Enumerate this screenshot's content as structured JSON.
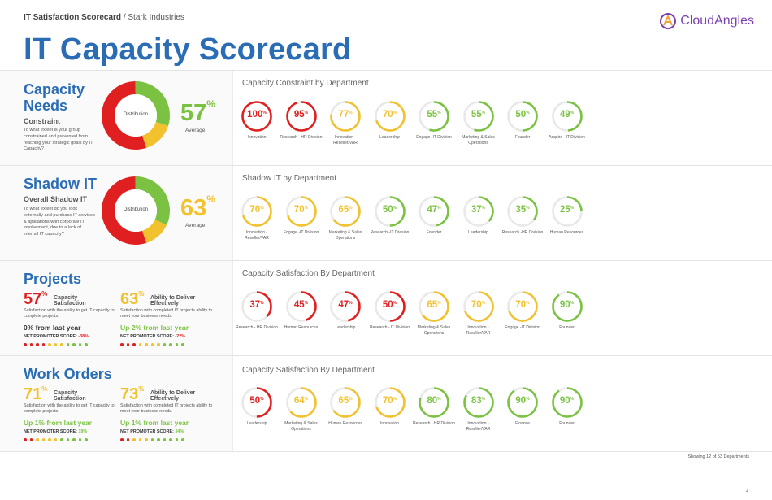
{
  "breadcrumb": {
    "strong": "IT Satisfaction Scorecard",
    "rest": "/ Stark Industries"
  },
  "brand": {
    "name": "CloudAngles",
    "color": "#7b3fb2"
  },
  "page_title": "IT Capacity Scorecard",
  "colors": {
    "red": "#e02020",
    "yellow": "#f2c12e",
    "green": "#7cc242",
    "track": "#e8e8e8",
    "title": "#2a6db5"
  },
  "capacity": {
    "title": "Capacity Needs",
    "subtitle": "Constraint",
    "description": "To what extent is your group constrained and prevented from reaching your strategic goals by IT Capacity?",
    "donut_label": "Distribution",
    "donut": [
      {
        "color": "red",
        "value": 55
      },
      {
        "color": "yellow",
        "value": 15
      },
      {
        "color": "green",
        "value": 30
      }
    ],
    "big_value": "57",
    "big_color": "green",
    "avg_label": "Average",
    "dept_title": "Capacity Constraint by Department",
    "depts": [
      {
        "value": "100",
        "label": "Innovation",
        "color": "red"
      },
      {
        "value": "95",
        "label": "Research - HR Division",
        "color": "red"
      },
      {
        "value": "77",
        "label": "Innovation - Reseller/VAR",
        "color": "yellow"
      },
      {
        "value": "70",
        "label": "Leadership",
        "color": "yellow"
      },
      {
        "value": "55",
        "label": "Engage -IT Division",
        "color": "green"
      },
      {
        "value": "55",
        "label": "Marketing & Sales Operations",
        "color": "green"
      },
      {
        "value": "50",
        "label": "Founder",
        "color": "green"
      },
      {
        "value": "49",
        "label": "Acquire - IT Division",
        "color": "green"
      }
    ]
  },
  "shadow": {
    "title": "Shadow IT",
    "subtitle": "Overall Shadow IT",
    "description": "To what extent do you look externally and purchase IT services & aplications with corporate IT involvement, due to a lack of internal IT capacity?",
    "donut_label": "Distribution",
    "donut": [
      {
        "color": "red",
        "value": 55
      },
      {
        "color": "yellow",
        "value": 13
      },
      {
        "color": "green",
        "value": 32
      }
    ],
    "big_value": "63",
    "big_color": "yellow",
    "avg_label": "Average",
    "dept_title": "Shadow IT by Department",
    "depts": [
      {
        "value": "70",
        "label": "Innovation -Reseller/VAR",
        "color": "yellow"
      },
      {
        "value": "70",
        "label": "Engage -IT Division",
        "color": "yellow"
      },
      {
        "value": "65",
        "label": "Marketing & Sales Operations",
        "color": "yellow"
      },
      {
        "value": "50",
        "label": "Research -IT Division",
        "color": "green"
      },
      {
        "value": "47",
        "label": "Founder",
        "color": "green"
      },
      {
        "value": "37",
        "label": "Leadership",
        "color": "green"
      },
      {
        "value": "35",
        "label": "Research -HR Division",
        "color": "green"
      },
      {
        "value": "25",
        "label": "Human Resources",
        "color": "green"
      }
    ]
  },
  "projects": {
    "title": "Projects",
    "metrics": [
      {
        "value": "57",
        "color": "red",
        "label": "Capacity Satisfaction",
        "desc": "Satisfaction with the ability to get IT capacity to complete projects.",
        "change": "0% from last year",
        "change_color": "#333",
        "nps_label": "NET PROMOTER SCORE:",
        "nps": "-38%",
        "nps_color": "red",
        "dots": [
          "red",
          "red",
          "red",
          "red",
          "yellow",
          "yellow",
          "yellow",
          "green",
          "green",
          "green",
          "green"
        ]
      },
      {
        "value": "63",
        "color": "yellow",
        "label": "Ability to Deliver Effectively",
        "desc": "Satisfaction with completed IT projects ability to meet your business needs.",
        "change": "Up 2% from last year",
        "change_color": "green",
        "nps_label": "NET PROMOTER SCORE:",
        "nps": "-22%",
        "nps_color": "red",
        "dots": [
          "red",
          "red",
          "red",
          "yellow",
          "yellow",
          "yellow",
          "yellow",
          "green",
          "green",
          "green",
          "green"
        ]
      }
    ],
    "dept_title": "Capacity Satisfaction By Department",
    "depts": [
      {
        "value": "37",
        "label": "Research - HR Division",
        "color": "red"
      },
      {
        "value": "45",
        "label": "Human Resources",
        "color": "red"
      },
      {
        "value": "47",
        "label": "Leadership",
        "color": "red"
      },
      {
        "value": "50",
        "label": "Research - IT Division",
        "color": "red"
      },
      {
        "value": "65",
        "label": "Marketing & Sales Operations",
        "color": "yellow"
      },
      {
        "value": "70",
        "label": "Innovation - Reseller/VAR",
        "color": "yellow"
      },
      {
        "value": "70",
        "label": "Engage -IT Division",
        "color": "yellow"
      },
      {
        "value": "90",
        "label": "Founder",
        "color": "green"
      }
    ]
  },
  "work_orders": {
    "title": "Work Orders",
    "metrics": [
      {
        "value": "71",
        "color": "yellow",
        "label": "Capacity Satisfaction",
        "desc": "Satisfaction with the ability to get IT capacity to complete projects.",
        "change": "Up 1% from last year",
        "change_color": "green",
        "nps_label": "NET PROMOTER SCORE:",
        "nps": "19%",
        "nps_color": "green",
        "dots": [
          "red",
          "red",
          "yellow",
          "yellow",
          "yellow",
          "yellow",
          "green",
          "green",
          "green",
          "green",
          "green"
        ]
      },
      {
        "value": "73",
        "color": "yellow",
        "label": "Ability to Deliver Effectively",
        "desc": "Satisfaction with completed IT projects ability to meet your business needs.",
        "change": "Up 1% from last year",
        "change_color": "green",
        "nps_label": "NET PROMOTER SCORE:",
        "nps": "34%",
        "nps_color": "green",
        "dots": [
          "red",
          "red",
          "yellow",
          "yellow",
          "yellow",
          "green",
          "green",
          "green",
          "green",
          "green",
          "green"
        ]
      }
    ],
    "dept_title": "Capacity Satisfaction By Department",
    "depts": [
      {
        "value": "50",
        "label": "Leadership",
        "color": "red"
      },
      {
        "value": "64",
        "label": "Marketing & Sales Operations",
        "color": "yellow"
      },
      {
        "value": "65",
        "label": "Human Resources",
        "color": "yellow"
      },
      {
        "value": "70",
        "label": "Innovation",
        "color": "yellow"
      },
      {
        "value": "80",
        "label": "Research - HR Division",
        "color": "green"
      },
      {
        "value": "83",
        "label": "Innovation - Reseller/VAR",
        "color": "green"
      },
      {
        "value": "90",
        "label": "Finance",
        "color": "green"
      },
      {
        "value": "90",
        "label": "Founder",
        "color": "green"
      }
    ]
  },
  "footer": "Showing 12 of 53 Departments",
  "page_number": "4",
  "chart_data": [
    {
      "type": "pie",
      "title": "Capacity Constraint by Department",
      "categories": [
        "Innovation",
        "Research - HR Division",
        "Innovation - Reseller/VAR",
        "Leadership",
        "Engage -IT Division",
        "Marketing & Sales Operations",
        "Founder",
        "Acquire - IT Division"
      ],
      "values": [
        100,
        95,
        77,
        70,
        55,
        55,
        50,
        49
      ]
    },
    {
      "type": "pie",
      "title": "Shadow IT by Department",
      "categories": [
        "Innovation -Reseller/VAR",
        "Engage -IT Division",
        "Marketing & Sales Operations",
        "Research -IT Division",
        "Founder",
        "Leadership",
        "Research -HR Division",
        "Human Resources"
      ],
      "values": [
        70,
        70,
        65,
        50,
        47,
        37,
        35,
        25
      ]
    },
    {
      "type": "pie",
      "title": "Capacity Satisfaction By Department",
      "categories": [
        "Research - HR Division",
        "Human Resources",
        "Leadership",
        "Research - IT Division",
        "Marketing & Sales Operations",
        "Innovation - Reseller/VAR",
        "Engage -IT Division",
        "Founder"
      ],
      "values": [
        37,
        45,
        47,
        50,
        65,
        70,
        70,
        90
      ]
    },
    {
      "type": "pie",
      "title": "Capacity Satisfaction By Department",
      "categories": [
        "Leadership",
        "Marketing & Sales Operations",
        "Human Resources",
        "Innovation",
        "Research - HR Division",
        "Innovation - Reseller/VAR",
        "Finance",
        "Founder"
      ],
      "values": [
        50,
        64,
        65,
        70,
        80,
        83,
        90,
        90
      ]
    }
  ]
}
